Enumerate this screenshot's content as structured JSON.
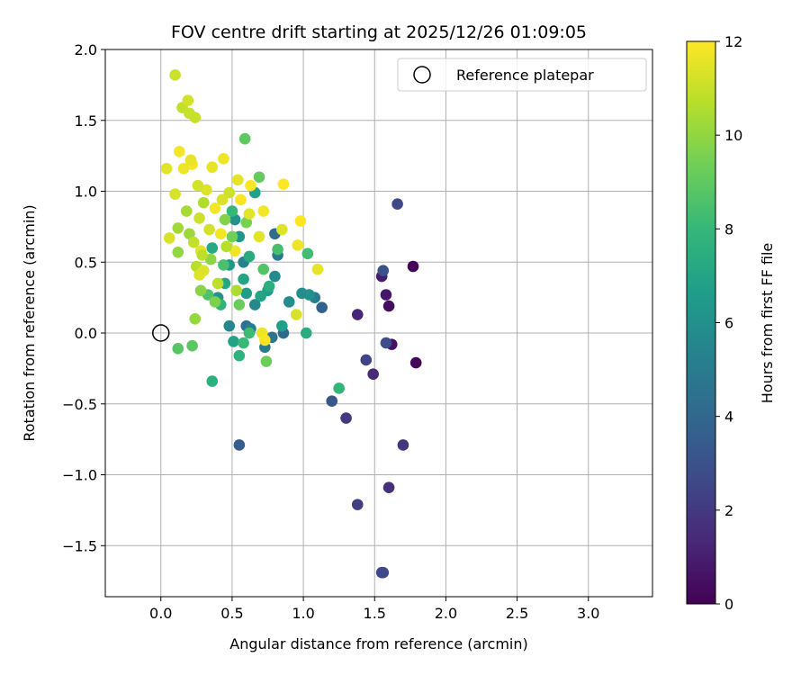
{
  "chart_data": {
    "type": "scatter",
    "title": "FOV centre drift starting at 2025/12/26 01:09:05",
    "xlabel": "Angular distance from reference (arcmin)",
    "ylabel": "Rotation from reference (arcmin)",
    "xlim": [
      -0.39,
      3.45
    ],
    "ylim": [
      -1.86,
      2.0
    ],
    "xticks": [
      0.0,
      0.5,
      1.0,
      1.5,
      2.0,
      2.5,
      3.0
    ],
    "xtick_labels": [
      "0.0",
      "0.5",
      "1.0",
      "1.5",
      "2.0",
      "2.5",
      "3.0"
    ],
    "yticks": [
      -1.5,
      -1.0,
      -0.5,
      0.0,
      0.5,
      1.0,
      1.5,
      2.0
    ],
    "ytick_labels": [
      "−1.5",
      "−1.0",
      "−0.5",
      "0.0",
      "0.5",
      "1.0",
      "1.5",
      "2.0"
    ],
    "grid": true,
    "legend": {
      "position": "top-right",
      "entries": [
        {
          "label": "Reference platepar",
          "marker": "open-circle"
        }
      ]
    },
    "reference_point": {
      "x": 0.0,
      "y": 0.0
    },
    "colorbar": {
      "label": "Hours from first FF file",
      "min": 0,
      "max": 12,
      "ticks": [
        0,
        2,
        4,
        6,
        8,
        10,
        12
      ],
      "tick_labels": [
        "0",
        "2",
        "4",
        "6",
        "8",
        "10",
        "12"
      ],
      "colormap": "viridis",
      "stops": [
        "#440154",
        "#482878",
        "#3e4a89",
        "#31688e",
        "#26828e",
        "#1f9e89",
        "#35b779",
        "#6ece58",
        "#b5de2b",
        "#fde725"
      ]
    },
    "series": [
      {
        "name": "Hours from first FF file",
        "points": [
          [
            1.77,
            0.47,
            0.1
          ],
          [
            1.79,
            -0.21,
            0.2
          ],
          [
            1.6,
            0.19,
            0.4
          ],
          [
            1.62,
            -0.08,
            0.6
          ],
          [
            1.58,
            0.27,
            0.8
          ],
          [
            1.55,
            0.4,
            1.0
          ],
          [
            1.38,
            0.13,
            1.2
          ],
          [
            1.49,
            -0.29,
            1.4
          ],
          [
            1.6,
            -1.09,
            1.6
          ],
          [
            1.7,
            -0.79,
            1.8
          ],
          [
            1.3,
            -0.6,
            2.0
          ],
          [
            1.38,
            -1.21,
            2.2
          ],
          [
            1.44,
            -0.19,
            2.4
          ],
          [
            1.55,
            -1.69,
            2.5
          ],
          [
            1.56,
            -1.69,
            2.6
          ],
          [
            1.66,
            0.91,
            2.6
          ],
          [
            1.58,
            -0.07,
            2.8
          ],
          [
            1.56,
            0.44,
            3.0
          ],
          [
            1.2,
            -0.48,
            3.3
          ],
          [
            0.55,
            -0.79,
            3.5
          ],
          [
            1.13,
            0.18,
            3.8
          ],
          [
            0.86,
            0.0,
            4.0
          ],
          [
            0.8,
            0.7,
            4.2
          ],
          [
            0.6,
            0.05,
            4.4
          ],
          [
            0.78,
            -0.03,
            4.6
          ],
          [
            0.82,
            0.55,
            4.8
          ],
          [
            1.08,
            0.25,
            5.0
          ],
          [
            0.73,
            -0.1,
            5.0
          ],
          [
            0.63,
            0.03,
            5.2
          ],
          [
            0.58,
            0.5,
            5.4
          ],
          [
            0.48,
            0.05,
            5.5
          ],
          [
            0.66,
            0.2,
            5.6
          ],
          [
            0.8,
            0.4,
            5.7
          ],
          [
            0.9,
            0.22,
            5.8
          ],
          [
            0.99,
            0.28,
            5.9
          ],
          [
            1.04,
            0.27,
            6.0
          ],
          [
            0.52,
            0.8,
            6.1
          ],
          [
            0.4,
            0.25,
            6.2
          ],
          [
            0.55,
            0.68,
            6.3
          ],
          [
            0.48,
            0.48,
            6.4
          ],
          [
            0.6,
            0.28,
            6.5
          ],
          [
            0.75,
            0.3,
            6.6
          ],
          [
            0.85,
            0.05,
            6.7
          ],
          [
            0.66,
            0.99,
            6.8
          ],
          [
            0.51,
            -0.06,
            6.9
          ],
          [
            0.7,
            0.26,
            7.0
          ],
          [
            0.58,
            0.38,
            7.0
          ],
          [
            0.45,
            0.35,
            7.1
          ],
          [
            0.36,
            0.6,
            7.2
          ],
          [
            0.62,
            0.54,
            7.3
          ],
          [
            1.02,
            0.0,
            7.4
          ],
          [
            0.76,
            0.33,
            7.5
          ],
          [
            0.36,
            -0.34,
            7.6
          ],
          [
            0.55,
            -0.16,
            7.7
          ],
          [
            0.42,
            0.2,
            7.8
          ],
          [
            1.25,
            -0.39,
            7.9
          ],
          [
            0.5,
            0.86,
            8.0
          ],
          [
            0.58,
            -0.07,
            8.1
          ],
          [
            0.62,
            0.0,
            8.2
          ],
          [
            1.03,
            0.56,
            8.3
          ],
          [
            0.82,
            0.59,
            8.4
          ],
          [
            0.44,
            0.48,
            8.5
          ],
          [
            0.33,
            0.27,
            8.6
          ],
          [
            0.72,
            0.45,
            8.7
          ],
          [
            0.12,
            -0.11,
            8.8
          ],
          [
            0.22,
            -0.09,
            8.9
          ],
          [
            0.59,
            1.37,
            9.0
          ],
          [
            0.69,
            1.1,
            9.1
          ],
          [
            0.55,
            0.2,
            9.2
          ],
          [
            0.74,
            -0.2,
            9.3
          ],
          [
            0.5,
            0.68,
            9.4
          ],
          [
            0.6,
            0.78,
            9.5
          ],
          [
            0.38,
            0.22,
            9.6
          ],
          [
            0.45,
            0.8,
            9.7
          ],
          [
            0.28,
            0.3,
            9.8
          ],
          [
            0.35,
            0.52,
            9.9
          ],
          [
            0.12,
            0.57,
            10.0
          ],
          [
            0.24,
            0.1,
            10.1
          ],
          [
            0.2,
            0.7,
            10.2
          ],
          [
            0.12,
            0.74,
            10.3
          ],
          [
            0.18,
            0.86,
            10.4
          ],
          [
            0.53,
            0.3,
            10.5
          ],
          [
            0.3,
            0.92,
            10.6
          ],
          [
            0.25,
            0.47,
            10.7
          ],
          [
            0.4,
            0.35,
            10.8
          ],
          [
            0.15,
            1.59,
            10.9
          ],
          [
            0.2,
            1.55,
            11.0
          ],
          [
            0.24,
            1.52,
            11.0
          ],
          [
            0.1,
            1.82,
            11.1
          ],
          [
            0.19,
            1.64,
            11.2
          ],
          [
            0.06,
            0.67,
            11.3
          ],
          [
            0.27,
            0.41,
            11.4
          ],
          [
            0.28,
            0.58,
            11.5
          ],
          [
            0.36,
            1.17,
            11.6
          ],
          [
            0.44,
            1.23,
            11.7
          ],
          [
            0.42,
            0.7,
            11.8
          ],
          [
            0.63,
            1.04,
            11.9
          ],
          [
            0.86,
            1.05,
            12.0
          ],
          [
            0.98,
            0.79,
            12.0
          ],
          [
            0.22,
            1.19,
            11.9
          ],
          [
            0.13,
            1.28,
            11.8
          ],
          [
            0.16,
            1.16,
            11.7
          ],
          [
            0.21,
            1.22,
            11.6
          ],
          [
            0.04,
            1.16,
            11.5
          ],
          [
            0.32,
            1.01,
            11.4
          ],
          [
            0.1,
            0.98,
            11.3
          ],
          [
            0.26,
            1.04,
            11.2
          ],
          [
            0.48,
            0.99,
            11.1
          ],
          [
            0.56,
            0.94,
            11.9
          ],
          [
            0.72,
            0.86,
            11.8
          ],
          [
            0.96,
            0.62,
            11.7
          ],
          [
            1.1,
            0.45,
            11.6
          ],
          [
            0.69,
            0.68,
            11.5
          ],
          [
            0.3,
            0.44,
            11.4
          ],
          [
            0.95,
            0.13,
            11.3
          ],
          [
            0.71,
            0.0,
            11.7
          ],
          [
            0.73,
            -0.05,
            11.9
          ],
          [
            0.38,
            0.88,
            11.8
          ],
          [
            0.54,
            1.08,
            11.6
          ],
          [
            0.62,
            0.84,
            11.5
          ],
          [
            0.85,
            0.73,
            11.4
          ],
          [
            0.52,
            0.58,
            11.7
          ],
          [
            0.34,
            0.73,
            11.2
          ],
          [
            0.43,
            0.94,
            11.3
          ],
          [
            0.27,
            0.81,
            11.1
          ],
          [
            0.23,
            0.64,
            10.9
          ],
          [
            0.29,
            0.55,
            10.8
          ],
          [
            0.46,
            0.61,
            10.7
          ]
        ]
      }
    ]
  }
}
